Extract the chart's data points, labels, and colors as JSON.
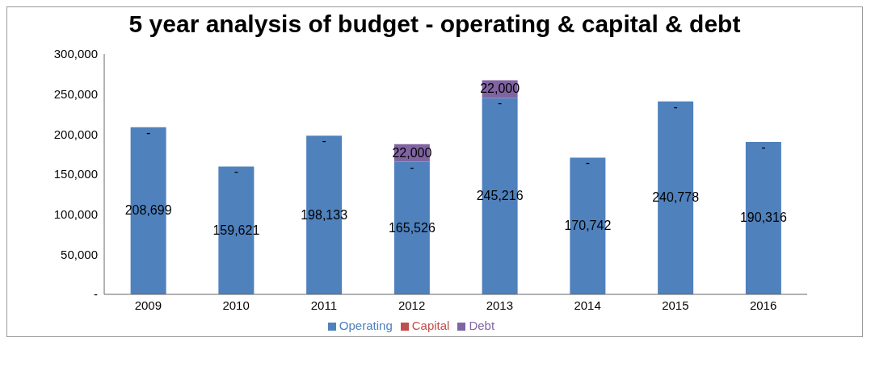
{
  "chart_data": {
    "type": "bar",
    "title": "5 year analysis of budget - operating & capital & debt",
    "categories": [
      "2009",
      "2010",
      "2011",
      "2012",
      "2013",
      "2014",
      "2015",
      "2016"
    ],
    "stacked": true,
    "series": [
      {
        "name": "Operating",
        "color": "#4f81bd",
        "values": [
          208699,
          159621,
          198133,
          165526,
          245216,
          170742,
          240778,
          190316
        ],
        "value_labels": [
          "208,699",
          "159,621",
          "198,133",
          "165,526",
          "245,216",
          "170,742",
          "240,778",
          "190,316"
        ]
      },
      {
        "name": "Capital",
        "color": "#c0504d",
        "values": [
          0,
          0,
          0,
          0,
          0,
          0,
          0,
          0
        ],
        "value_labels": [
          "-",
          "-",
          "-",
          "-",
          "-",
          "-",
          "-",
          "-"
        ]
      },
      {
        "name": "Debt",
        "color": "#8064a2",
        "values": [
          0,
          0,
          0,
          22000,
          22000,
          0,
          0,
          0
        ],
        "value_labels": [
          null,
          null,
          null,
          "22,000",
          "22,000",
          null,
          null,
          null
        ]
      }
    ],
    "ylim": [
      0,
      300000
    ],
    "yticks": [
      {
        "value": 0,
        "label": "-"
      },
      {
        "value": 50000,
        "label": "50,000"
      },
      {
        "value": 100000,
        "label": "100,000"
      },
      {
        "value": 150000,
        "label": "150,000"
      },
      {
        "value": 200000,
        "label": "200,000"
      },
      {
        "value": 250000,
        "label": "250,000"
      },
      {
        "value": 300000,
        "label": "300,000"
      }
    ],
    "grid": false,
    "legend": "bottom"
  }
}
